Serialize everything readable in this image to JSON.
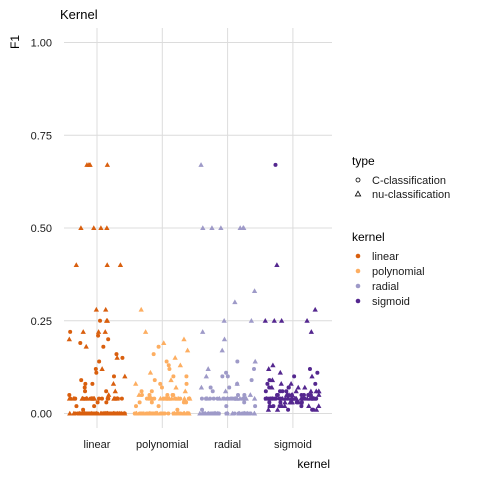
{
  "chart_data": {
    "type": "scatter",
    "title": "Kernel",
    "xlabel": "kernel",
    "ylabel": "F1",
    "ylim": [
      0,
      1
    ],
    "yticks": [
      "0.00",
      "0.25",
      "0.50",
      "0.75",
      "1.00"
    ],
    "ytick_values": [
      0,
      0.25,
      0.5,
      0.75,
      1.0
    ],
    "categories": [
      "linear",
      "polynomial",
      "radial",
      "sigmoid"
    ],
    "grid": true,
    "legend_placement": "right",
    "legends": {
      "type": {
        "title": "type",
        "entries": [
          {
            "label": "C-classification",
            "shape": "circle"
          },
          {
            "label": "nu-classification",
            "shape": "triangle"
          }
        ]
      },
      "kernel": {
        "title": "kernel",
        "entries": [
          {
            "label": "linear",
            "color": "#d95f0e"
          },
          {
            "label": "polynomial",
            "color": "#fdae61"
          },
          {
            "label": "radial",
            "color": "#9e9ac8"
          },
          {
            "label": "sigmoid",
            "color": "#54278f"
          }
        ]
      }
    },
    "series": [
      {
        "kernel": "linear",
        "color": "#d95f0e",
        "circle": [
          0,
          0,
          0,
          0,
          0,
          0,
          0,
          0,
          0,
          0,
          0,
          0,
          0,
          0,
          0,
          0,
          0,
          0,
          0,
          0,
          0,
          0,
          0,
          0,
          0,
          0,
          0,
          0,
          0,
          0,
          0,
          0,
          0,
          0,
          0,
          0,
          0,
          0,
          0,
          0,
          0.04,
          0.04,
          0.04,
          0.04,
          0.04,
          0.04,
          0.04,
          0.04,
          0.04,
          0.04,
          0.04,
          0.04,
          0.04,
          0.04,
          0.04,
          0.04,
          0.04,
          0.04,
          0.04,
          0.04,
          0.01,
          0.02,
          0.03,
          0.05,
          0.06,
          0.07,
          0.08,
          0.09,
          0.1,
          0.12,
          0.14,
          0.16,
          0.18,
          0.2,
          0.22,
          0.25,
          0.02,
          0.03,
          0.06,
          0.08,
          0.11,
          0.15,
          0.19,
          0.21
        ],
        "triangle": [
          0,
          0,
          0,
          0,
          0,
          0,
          0,
          0,
          0,
          0,
          0,
          0,
          0,
          0,
          0,
          0,
          0,
          0,
          0,
          0,
          0.04,
          0.04,
          0.04,
          0.04,
          0.04,
          0.04,
          0.04,
          0.04,
          0.04,
          0.04,
          0.04,
          0.04,
          0.05,
          0.06,
          0.08,
          0.1,
          0.12,
          0.15,
          0.18,
          0.2,
          0.22,
          0.22,
          0.22,
          0.25,
          0.25,
          0.28,
          0.28,
          0.4,
          0.4,
          0.4,
          0.5,
          0.5,
          0.5,
          0.5,
          0.67,
          0.67,
          0.67,
          0.67
        ]
      },
      {
        "kernel": "polynomial",
        "color": "#fdae61",
        "circle": [
          0,
          0,
          0,
          0,
          0,
          0,
          0,
          0,
          0,
          0,
          0,
          0,
          0,
          0,
          0,
          0,
          0,
          0,
          0,
          0,
          0,
          0,
          0,
          0,
          0,
          0,
          0,
          0,
          0.03,
          0.03,
          0.03,
          0.03,
          0.04,
          0.04,
          0.04,
          0.04,
          0.04,
          0.04,
          0.04,
          0.04,
          0.04,
          0.04,
          0.04,
          0.04,
          0.04,
          0.04,
          0.05,
          0.05,
          0.05,
          0.05,
          0.01,
          0.02,
          0.06,
          0.07,
          0.08,
          0.09,
          0.1,
          0.12,
          0.14,
          0.16,
          0.18,
          0.02,
          0.05,
          0.06,
          0.08,
          0.1,
          0.13
        ],
        "triangle": [
          0,
          0,
          0,
          0,
          0,
          0,
          0,
          0,
          0,
          0,
          0,
          0,
          0,
          0,
          0,
          0,
          0.04,
          0.04,
          0.04,
          0.04,
          0.04,
          0.04,
          0.04,
          0.04,
          0.04,
          0.04,
          0.05,
          0.06,
          0.07,
          0.08,
          0.09,
          0.11,
          0.13,
          0.15,
          0.17,
          0.19,
          0.2,
          0.22,
          0.28
        ]
      },
      {
        "kernel": "radial",
        "color": "#9e9ac8",
        "circle": [
          0,
          0,
          0,
          0,
          0,
          0,
          0,
          0,
          0,
          0,
          0,
          0,
          0,
          0,
          0,
          0,
          0,
          0,
          0,
          0,
          0,
          0,
          0,
          0,
          0.04,
          0.04,
          0.04,
          0.04,
          0.04,
          0.04,
          0.04,
          0.04,
          0.04,
          0.04,
          0.04,
          0.04,
          0.04,
          0.04,
          0.04,
          0.04,
          0.04,
          0.04,
          0.01,
          0.02,
          0.03,
          0.05,
          0.06,
          0.07,
          0.08,
          0.09,
          0.1,
          0.11,
          0.12,
          0.14,
          0.02,
          0.05,
          0.07,
          0.1
        ],
        "triangle": [
          0,
          0,
          0,
          0,
          0,
          0,
          0,
          0,
          0,
          0,
          0,
          0,
          0,
          0,
          0,
          0,
          0.04,
          0.04,
          0.04,
          0.04,
          0.04,
          0.04,
          0.04,
          0.04,
          0.04,
          0.04,
          0.05,
          0.06,
          0.07,
          0.08,
          0.1,
          0.12,
          0.14,
          0.17,
          0.2,
          0.22,
          0.25,
          0.25,
          0.3,
          0.33,
          0.5,
          0.5,
          0.5,
          0.5,
          0.5,
          0.5,
          0.67
        ]
      },
      {
        "kernel": "sigmoid",
        "color": "#54278f",
        "circle": [
          0.01,
          0.01,
          0.01,
          0.02,
          0.02,
          0.02,
          0.02,
          0.03,
          0.03,
          0.03,
          0.03,
          0.03,
          0.04,
          0.04,
          0.04,
          0.04,
          0.04,
          0.04,
          0.04,
          0.04,
          0.04,
          0.04,
          0.04,
          0.04,
          0.04,
          0.04,
          0.04,
          0.04,
          0.05,
          0.05,
          0.05,
          0.05,
          0.05,
          0.05,
          0.05,
          0.06,
          0.06,
          0.06,
          0.06,
          0.07,
          0.07,
          0.07,
          0.08,
          0.08,
          0.09,
          0.1,
          0.11,
          0.12,
          0.67
        ],
        "triangle": [
          0.01,
          0.01,
          0.01,
          0.02,
          0.02,
          0.02,
          0.02,
          0.02,
          0.03,
          0.03,
          0.03,
          0.03,
          0.03,
          0.04,
          0.04,
          0.04,
          0.04,
          0.04,
          0.04,
          0.04,
          0.04,
          0.04,
          0.04,
          0.04,
          0.04,
          0.04,
          0.04,
          0.05,
          0.05,
          0.05,
          0.05,
          0.05,
          0.05,
          0.05,
          0.06,
          0.06,
          0.06,
          0.06,
          0.06,
          0.07,
          0.07,
          0.07,
          0.08,
          0.08,
          0.09,
          0.1,
          0.11,
          0.12,
          0.13,
          0.22,
          0.25,
          0.25,
          0.25,
          0.25,
          0.28,
          0.4
        ]
      }
    ]
  }
}
